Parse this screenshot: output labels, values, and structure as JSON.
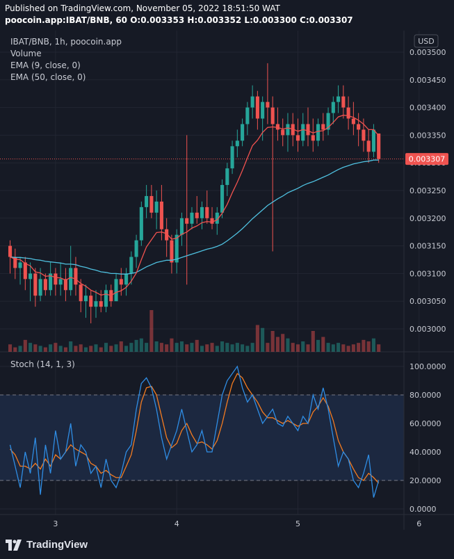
{
  "header": {
    "published": "Published on TradingView.com, November 05, 2022 18:51:50 WAT",
    "ohlc_line": "poocoin.app:IBAT/BNB, 60  O:0.003353 H:0.003352 L:0.003300 C:0.003307"
  },
  "legend": {
    "symbol": "IBAT/BNB, 1h, poocoin.app",
    "volume": "Volume",
    "ema9": "EMA (9, close, 0)",
    "ema50": "EMA (50, close, 0)",
    "stoch": "Stoch (14, 1, 3)"
  },
  "currency_button": "USD",
  "footer": {
    "brand": "TradingView"
  },
  "colors": {
    "up": "#26a69a",
    "down": "#ef5350",
    "ema9": "#f0524f",
    "ema50": "#4fc1e0",
    "stoch_k": "#2f8de4",
    "stoch_d": "#f57c20",
    "background": "#161a25",
    "band": "#1e2a40"
  },
  "chart_data": [
    {
      "type": "candlestick",
      "title": "IBAT/BNB, 1h, poocoin.app",
      "x_ticks": [
        "3",
        "4",
        "5",
        "6"
      ],
      "y_ticks": [
        "0.003000",
        "0.003050",
        "0.003100",
        "0.003150",
        "0.003200",
        "0.003250",
        "0.003300",
        "0.003350",
        "0.003400",
        "0.003450",
        "0.003500"
      ],
      "ylim": [
        0.002965,
        0.003512
      ],
      "last_price": "0.003307",
      "x_range_bars": [
        -2,
        78
      ],
      "series": [
        {
          "name": "Volume"
        },
        {
          "name": "EMA (9, close, 0)"
        },
        {
          "name": "EMA (50, close, 0)"
        }
      ],
      "ohlc": [
        [
          0.00315,
          0.00316,
          0.0031,
          0.00313
        ],
        [
          0.00313,
          0.003145,
          0.00309,
          0.00311
        ],
        [
          0.00311,
          0.00313,
          0.00308,
          0.00312
        ],
        [
          0.00312,
          0.00313,
          0.00307,
          0.00309
        ],
        [
          0.00309,
          0.00312,
          0.00305,
          0.0031
        ],
        [
          0.0031,
          0.00311,
          0.00304,
          0.00306
        ],
        [
          0.00306,
          0.00311,
          0.00305,
          0.00309
        ],
        [
          0.00309,
          0.0031,
          0.00306,
          0.00307
        ],
        [
          0.00307,
          0.00312,
          0.00306,
          0.0031
        ],
        [
          0.0031,
          0.00311,
          0.00306,
          0.00308
        ],
        [
          0.00308,
          0.00312,
          0.00306,
          0.00309
        ],
        [
          0.00309,
          0.00311,
          0.00305,
          0.00307
        ],
        [
          0.00307,
          0.00315,
          0.00306,
          0.00311
        ],
        [
          0.00311,
          0.00313,
          0.00306,
          0.00308
        ],
        [
          0.00308,
          0.00309,
          0.00303,
          0.00305
        ],
        [
          0.00305,
          0.00308,
          0.00302,
          0.00306
        ],
        [
          0.00306,
          0.00307,
          0.00301,
          0.00304
        ],
        [
          0.00304,
          0.00307,
          0.00302,
          0.00305
        ],
        [
          0.00305,
          0.00307,
          0.00303,
          0.00304
        ],
        [
          0.00304,
          0.00308,
          0.00303,
          0.00307
        ],
        [
          0.00307,
          0.00308,
          0.00304,
          0.00305
        ],
        [
          0.00305,
          0.0031,
          0.00305,
          0.00309
        ],
        [
          0.00309,
          0.00311,
          0.00306,
          0.00308
        ],
        [
          0.00308,
          0.00311,
          0.00306,
          0.0031
        ],
        [
          0.0031,
          0.00314,
          0.00308,
          0.00313
        ],
        [
          0.00313,
          0.00317,
          0.00311,
          0.00316
        ],
        [
          0.00316,
          0.00323,
          0.00315,
          0.00322
        ],
        [
          0.00322,
          0.00326,
          0.0032,
          0.00324
        ],
        [
          0.00324,
          0.00326,
          0.0032,
          0.00321
        ],
        [
          0.00321,
          0.00325,
          0.00318,
          0.00323
        ],
        [
          0.00323,
          0.00326,
          0.00316,
          0.00318
        ],
        [
          0.00318,
          0.0032,
          0.00313,
          0.00316
        ],
        [
          0.00316,
          0.00317,
          0.0031,
          0.00312
        ],
        [
          0.00312,
          0.00318,
          0.0031,
          0.00317
        ],
        [
          0.00317,
          0.00321,
          0.00315,
          0.0032
        ],
        [
          0.0032,
          0.00335,
          0.00308,
          0.00319
        ],
        [
          0.00319,
          0.00322,
          0.00318,
          0.00321
        ],
        [
          0.00321,
          0.00324,
          0.00319,
          0.0032
        ],
        [
          0.0032,
          0.00323,
          0.00318,
          0.00322
        ],
        [
          0.00322,
          0.00325,
          0.00319,
          0.0032
        ],
        [
          0.0032,
          0.00322,
          0.00318,
          0.00319
        ],
        [
          0.00319,
          0.00322,
          0.00317,
          0.00321
        ],
        [
          0.00321,
          0.00327,
          0.0032,
          0.00326
        ],
        [
          0.00326,
          0.0033,
          0.00324,
          0.00329
        ],
        [
          0.00329,
          0.00334,
          0.00328,
          0.00333
        ],
        [
          0.00333,
          0.00336,
          0.00331,
          0.00334
        ],
        [
          0.00334,
          0.00338,
          0.00333,
          0.00337
        ],
        [
          0.00337,
          0.00341,
          0.00335,
          0.0034
        ],
        [
          0.0034,
          0.00344,
          0.00338,
          0.00342
        ],
        [
          0.00342,
          0.00343,
          0.00336,
          0.00338
        ],
        [
          0.00338,
          0.00342,
          0.00334,
          0.00341
        ],
        [
          0.00341,
          0.00348,
          0.00337,
          0.0034
        ],
        [
          0.0034,
          0.00342,
          0.00314,
          0.00337
        ],
        [
          0.00337,
          0.0034,
          0.00334,
          0.00336
        ],
        [
          0.00336,
          0.00338,
          0.00333,
          0.00335
        ],
        [
          0.00335,
          0.00339,
          0.00332,
          0.00337
        ],
        [
          0.00337,
          0.00339,
          0.00333,
          0.00335
        ],
        [
          0.00335,
          0.00338,
          0.00332,
          0.00334
        ],
        [
          0.00334,
          0.00339,
          0.00333,
          0.00337
        ],
        [
          0.00337,
          0.0034,
          0.00333,
          0.00335
        ],
        [
          0.00335,
          0.00338,
          0.00332,
          0.00334
        ],
        [
          0.00334,
          0.00338,
          0.00333,
          0.00337
        ],
        [
          0.00337,
          0.00339,
          0.00334,
          0.00336
        ],
        [
          0.00336,
          0.0034,
          0.00335,
          0.00339
        ],
        [
          0.00339,
          0.00342,
          0.00337,
          0.00341
        ],
        [
          0.00341,
          0.00344,
          0.00339,
          0.00342
        ],
        [
          0.00342,
          0.00344,
          0.00338,
          0.0034
        ],
        [
          0.0034,
          0.00342,
          0.00336,
          0.00338
        ],
        [
          0.00338,
          0.00341,
          0.00335,
          0.00337
        ],
        [
          0.00337,
          0.00339,
          0.00333,
          0.00336
        ],
        [
          0.00336,
          0.00338,
          0.00332,
          0.00334
        ],
        [
          0.00334,
          0.00336,
          0.0033,
          0.00332
        ],
        [
          0.00332,
          0.00337,
          0.00331,
          0.00336
        ],
        [
          0.003353,
          0.003352,
          0.0033,
          0.003307
        ]
      ],
      "volume": [
        5,
        3,
        4,
        8,
        6,
        5,
        4,
        3,
        5,
        6,
        4,
        3,
        7,
        4,
        5,
        3,
        4,
        5,
        3,
        6,
        4,
        5,
        7,
        4,
        6,
        8,
        9,
        6,
        28,
        7,
        6,
        5,
        9,
        6,
        7,
        5,
        6,
        8,
        4,
        5,
        6,
        4,
        7,
        6,
        5,
        6,
        5,
        4,
        6,
        18,
        16,
        6,
        14,
        10,
        12,
        9,
        6,
        5,
        7,
        5,
        14,
        8,
        10,
        6,
        5,
        6,
        5,
        4,
        5,
        6,
        8,
        7,
        9,
        5
      ],
      "ema9": [
        0.00313,
        0.003126,
        0.003125,
        0.003118,
        0.003114,
        0.003103,
        0.003101,
        0.003095,
        0.003096,
        0.003093,
        0.003092,
        0.003088,
        0.003093,
        0.00309,
        0.003082,
        0.003077,
        0.00307,
        0.003066,
        0.003061,
        0.003063,
        0.00306,
        0.003066,
        0.003069,
        0.003075,
        0.003086,
        0.003101,
        0.003125,
        0.003148,
        0.003161,
        0.003174,
        0.003175,
        0.003172,
        0.003162,
        0.003164,
        0.003171,
        0.003175,
        0.003182,
        0.003186,
        0.003192,
        0.003194,
        0.003193,
        0.003197,
        0.003209,
        0.003225,
        0.003246,
        0.003265,
        0.003286,
        0.003309,
        0.003331,
        0.003341,
        0.003355,
        0.003364,
        0.003365,
        0.003364,
        0.003361,
        0.003363,
        0.003361,
        0.003357,
        0.00336,
        0.003358,
        0.003354,
        0.003357,
        0.003358,
        0.003364,
        0.003373,
        0.003383,
        0.003386,
        0.003385,
        0.003382,
        0.003377,
        0.00337,
        0.00336,
        0.00336,
        0.003349
      ],
      "ema50": [
        0.00313,
        0.003129,
        0.003129,
        0.003128,
        0.003127,
        0.003125,
        0.003124,
        0.003122,
        0.003121,
        0.00312,
        0.003119,
        0.003117,
        0.003117,
        0.003116,
        0.003113,
        0.003111,
        0.003108,
        0.003106,
        0.003103,
        0.003102,
        0.0031,
        0.0031,
        0.003099,
        0.003099,
        0.0031,
        0.003102,
        0.003107,
        0.003112,
        0.003116,
        0.00312,
        0.003122,
        0.003124,
        0.003124,
        0.003126,
        0.003129,
        0.003132,
        0.003135,
        0.003138,
        0.003141,
        0.003144,
        0.003146,
        0.003149,
        0.003153,
        0.003159,
        0.003166,
        0.003173,
        0.003181,
        0.00319,
        0.003199,
        0.003207,
        0.003215,
        0.003223,
        0.003229,
        0.003235,
        0.00324,
        0.003246,
        0.00325,
        0.003254,
        0.003259,
        0.003263,
        0.003266,
        0.00327,
        0.003274,
        0.003278,
        0.003283,
        0.003288,
        0.003292,
        0.003295,
        0.003298,
        0.0033,
        0.003302,
        0.003303,
        0.003305,
        0.003305
      ]
    },
    {
      "type": "line",
      "title": "Stoch (14, 1, 3)",
      "y_ticks": [
        "0.0000",
        "20.0000",
        "40.0000",
        "60.0000",
        "80.0000",
        "100.0000"
      ],
      "ylim": [
        -3,
        104
      ],
      "band": [
        20,
        80
      ],
      "series": [
        {
          "name": "%K",
          "values": [
            45,
            30,
            15,
            40,
            25,
            50,
            10,
            45,
            25,
            55,
            35,
            40,
            60,
            30,
            45,
            40,
            25,
            30,
            15,
            35,
            20,
            15,
            25,
            40,
            45,
            70,
            88,
            92,
            85,
            70,
            50,
            35,
            45,
            55,
            70,
            55,
            40,
            45,
            55,
            40,
            40,
            60,
            80,
            90,
            95,
            100,
            85,
            75,
            80,
            70,
            60,
            65,
            70,
            60,
            58,
            65,
            60,
            55,
            65,
            60,
            80,
            70,
            85,
            70,
            50,
            30,
            40,
            35,
            20,
            15,
            25,
            38,
            8,
            20
          ]
        },
        {
          "name": "%D",
          "values": [
            42,
            38,
            30,
            30,
            28,
            32,
            28,
            35,
            30,
            38,
            35,
            40,
            45,
            42,
            40,
            38,
            32,
            30,
            25,
            27,
            24,
            22,
            22,
            30,
            38,
            55,
            75,
            85,
            86,
            80,
            65,
            50,
            43,
            46,
            55,
            60,
            52,
            46,
            47,
            45,
            42,
            48,
            60,
            75,
            88,
            95,
            92,
            85,
            80,
            75,
            68,
            64,
            64,
            62,
            60,
            62,
            60,
            58,
            60,
            60,
            68,
            72,
            78,
            72,
            62,
            48,
            40,
            35,
            28,
            22,
            20,
            25,
            22,
            18
          ]
        }
      ]
    }
  ]
}
